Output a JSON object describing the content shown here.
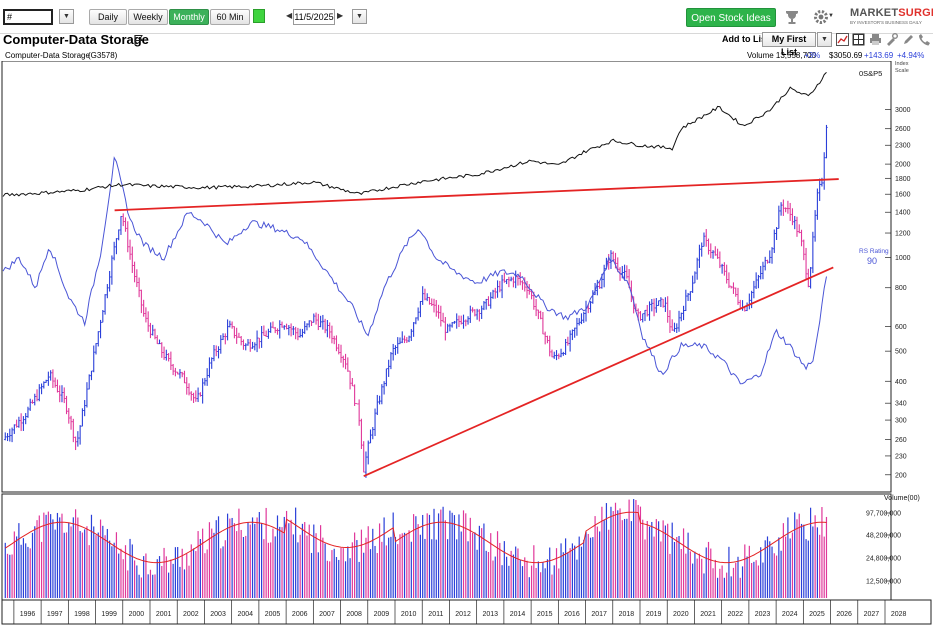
{
  "toolbar": {
    "symbol_value": "#",
    "periods": [
      "Daily",
      "Weekly",
      "Monthly",
      "60 Min"
    ],
    "active_period": "Monthly",
    "date": "11/5/2025",
    "open_ideas_label": "Open Stock Ideas",
    "brand_name_left": "MARKET",
    "brand_name_right": "SURGE",
    "brand_tagline": "BY INVESTOR'S BUSINESS DAILY"
  },
  "header": {
    "title": "Computer-Data Storage",
    "add_to_list_label": "Add to List:",
    "list_name": "My First List"
  },
  "info": {
    "group_name": "Computer-Data Storage",
    "group_code": "(G3578)",
    "volume": "Volume 13,558,700",
    "volume_change": "+3%",
    "price": "$3050.69",
    "change": "+143.69",
    "change_pct": "+4.94%"
  },
  "colors": {
    "up_bar": "#2a3fd9",
    "down_bar": "#e0379a",
    "rs_line": "#4a55d6",
    "sp500_line": "#111111",
    "trendline": "#e42424",
    "vol_avg": "#e42424",
    "accent_green": "#2db34a"
  },
  "chart_data": {
    "type": "ohlc",
    "timeframe": "monthly",
    "y_scale": "log",
    "ylim": [
      180,
      4200
    ],
    "yticks": [
      200,
      230,
      260,
      300,
      340,
      400,
      500,
      600,
      800,
      1000,
      1200,
      1400,
      1600,
      1800,
      2000,
      2300,
      2600,
      3000
    ],
    "ytick_labels": [
      "200",
      "230",
      "260",
      "300",
      "340",
      "400",
      "500",
      "600",
      "800",
      "1000",
      "1200",
      "1400",
      "1600",
      "1800",
      "2000",
      "2300",
      "2600",
      "3000"
    ],
    "scale_label_1": "Index",
    "scale_label_2": "Scale",
    "xlim": [
      1995.6,
      2028.0
    ],
    "x_year_labels": [
      "1996",
      "1997",
      "1998",
      "1999",
      "2000",
      "2001",
      "2002",
      "2003",
      "2004",
      "2005",
      "2006",
      "2007",
      "2008",
      "2009",
      "2010",
      "2011",
      "2012",
      "2013",
      "2014",
      "2015",
      "2016",
      "2017",
      "2018",
      "2019",
      "2020",
      "2021",
      "2022",
      "2023",
      "2024",
      "2025",
      "2026",
      "2027",
      "2028"
    ],
    "price_series": {
      "name": "Computer-Data Storage",
      "points": [
        [
          1995.6,
          260
        ],
        [
          1996.5,
          320
        ],
        [
          1997.3,
          420
        ],
        [
          1997.9,
          340
        ],
        [
          1998.3,
          250
        ],
        [
          1999.0,
          520
        ],
        [
          1999.6,
          980
        ],
        [
          1999.95,
          1400
        ],
        [
          2000.4,
          900
        ],
        [
          2000.8,
          640
        ],
        [
          2001.3,
          520
        ],
        [
          2001.7,
          460
        ],
        [
          2002.3,
          400
        ],
        [
          2002.7,
          340
        ],
        [
          2003.3,
          480
        ],
        [
          2003.9,
          600
        ],
        [
          2004.5,
          520
        ],
        [
          2005.2,
          560
        ],
        [
          2005.9,
          620
        ],
        [
          2006.5,
          560
        ],
        [
          2007.0,
          640
        ],
        [
          2007.6,
          580
        ],
        [
          2008.2,
          460
        ],
        [
          2008.7,
          300
        ],
        [
          2008.85,
          210
        ],
        [
          2009.3,
          320
        ],
        [
          2009.9,
          500
        ],
        [
          2010.5,
          560
        ],
        [
          2011.0,
          750
        ],
        [
          2011.5,
          680
        ],
        [
          2011.9,
          580
        ],
        [
          2012.5,
          640
        ],
        [
          2013.3,
          700
        ],
        [
          2013.9,
          820
        ],
        [
          2014.4,
          860
        ],
        [
          2014.9,
          800
        ],
        [
          2015.4,
          600
        ],
        [
          2015.8,
          470
        ],
        [
          2016.3,
          520
        ],
        [
          2016.9,
          660
        ],
        [
          2017.5,
          820
        ],
        [
          2017.9,
          1020
        ],
        [
          2018.5,
          860
        ],
        [
          2018.9,
          640
        ],
        [
          2019.5,
          700
        ],
        [
          2019.9,
          720
        ],
        [
          2020.2,
          560
        ],
        [
          2020.6,
          700
        ],
        [
          2020.9,
          820
        ],
        [
          2021.3,
          1150
        ],
        [
          2021.8,
          1000
        ],
        [
          2022.3,
          820
        ],
        [
          2022.8,
          680
        ],
        [
          2023.3,
          840
        ],
        [
          2023.8,
          1050
        ],
        [
          2024.2,
          1500
        ],
        [
          2024.6,
          1350
        ],
        [
          2024.9,
          1150
        ],
        [
          2025.2,
          820
        ],
        [
          2025.5,
          1550
        ],
        [
          2025.7,
          1800
        ],
        [
          2025.85,
          2700
        ],
        [
          2025.92,
          3050.69
        ]
      ]
    },
    "sp500_series": {
      "name": "0S&P5",
      "points": [
        [
          1995.6,
          1590
        ],
        [
          1997.0,
          1615
        ],
        [
          1998.5,
          1650
        ],
        [
          1999.5,
          1700
        ],
        [
          2000.0,
          1720
        ],
        [
          2001.0,
          1700
        ],
        [
          2003.0,
          1680
        ],
        [
          2005.0,
          1700
        ],
        [
          2007.0,
          1750
        ],
        [
          2008.7,
          1600
        ],
        [
          2009.5,
          1660
        ],
        [
          2011.0,
          1760
        ],
        [
          2013.0,
          1850
        ],
        [
          2015.0,
          2050
        ],
        [
          2016.0,
          1980
        ],
        [
          2017.0,
          2200
        ],
        [
          2018.0,
          2380
        ],
        [
          2019.0,
          2300
        ],
        [
          2020.2,
          2250
        ],
        [
          2020.5,
          2600
        ],
        [
          2021.9,
          3050
        ],
        [
          2022.8,
          2650
        ],
        [
          2023.8,
          3000
        ],
        [
          2024.5,
          3500
        ],
        [
          2025.2,
          3300
        ],
        [
          2025.9,
          4000
        ]
      ]
    },
    "rs_series": {
      "name": "RS Rating",
      "value_label": "90",
      "points": [
        [
          1995.6,
          900
        ],
        [
          1996.2,
          1000
        ],
        [
          1996.8,
          800
        ],
        [
          1997.3,
          1100
        ],
        [
          1998.0,
          750
        ],
        [
          1998.6,
          620
        ],
        [
          1999.2,
          1050
        ],
        [
          1999.7,
          2100
        ],
        [
          2000.3,
          1300
        ],
        [
          2000.8,
          1100
        ],
        [
          2001.5,
          1000
        ],
        [
          2002.4,
          1400
        ],
        [
          2003.0,
          1300
        ],
        [
          2003.8,
          1100
        ],
        [
          2004.7,
          1300
        ],
        [
          2005.5,
          1250
        ],
        [
          2006.6,
          1150
        ],
        [
          2007.5,
          900
        ],
        [
          2008.4,
          700
        ],
        [
          2009.0,
          560
        ],
        [
          2009.6,
          800
        ],
        [
          2010.4,
          1100
        ],
        [
          2010.9,
          1250
        ],
        [
          2011.5,
          1000
        ],
        [
          2012.2,
          900
        ],
        [
          2013.0,
          830
        ],
        [
          2013.9,
          900
        ],
        [
          2014.6,
          880
        ],
        [
          2015.5,
          700
        ],
        [
          2016.3,
          640
        ],
        [
          2017.1,
          700
        ],
        [
          2017.9,
          1000
        ],
        [
          2018.6,
          820
        ],
        [
          2019.1,
          560
        ],
        [
          2019.8,
          420
        ],
        [
          2020.5,
          520
        ],
        [
          2021.3,
          520
        ],
        [
          2022.0,
          470
        ],
        [
          2022.7,
          390
        ],
        [
          2023.4,
          420
        ],
        [
          2024.0,
          580
        ],
        [
          2024.5,
          520
        ],
        [
          2025.1,
          440
        ],
        [
          2025.4,
          480
        ],
        [
          2025.9,
          930
        ]
      ]
    },
    "trendlines": [
      {
        "x1": 1999.7,
        "y1": 1420,
        "x2": 2026.3,
        "y2": 1790
      },
      {
        "x1": 2008.85,
        "y1": 198,
        "x2": 2026.1,
        "y2": 930
      }
    ],
    "volume": {
      "label": "Volume(00)",
      "yticks": [
        "97,700,000",
        "48,200,000",
        "24,800,000",
        "12,500,000"
      ]
    }
  }
}
